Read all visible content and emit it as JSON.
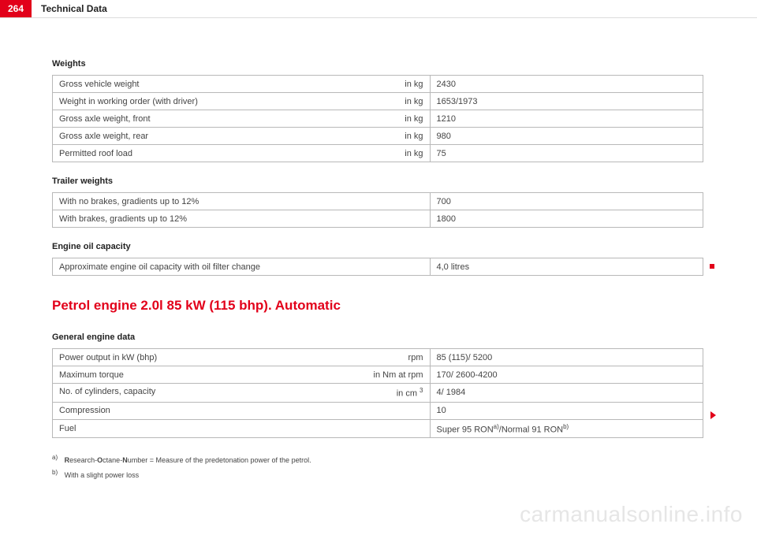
{
  "page": {
    "number": "264",
    "title": "Technical Data"
  },
  "weights": {
    "label": "Weights",
    "rows": [
      {
        "name": "Gross vehicle weight",
        "unit": "in kg",
        "value": "2430"
      },
      {
        "name": "Weight in working order (with driver)",
        "unit": "in kg",
        "value": "1653/1973"
      },
      {
        "name": "Gross axle weight, front",
        "unit": "in kg",
        "value": "1210"
      },
      {
        "name": "Gross axle weight, rear",
        "unit": "in kg",
        "value": "980"
      },
      {
        "name": "Permitted roof load",
        "unit": "in kg",
        "value": "75"
      }
    ]
  },
  "trailer": {
    "label": "Trailer weights",
    "rows": [
      {
        "name": "With no brakes, gradients up to 12%",
        "unit": "",
        "value": "700"
      },
      {
        "name": "With brakes, gradients up to 12%",
        "unit": "",
        "value": "1800"
      }
    ]
  },
  "oil": {
    "label": "Engine oil capacity",
    "rows": [
      {
        "name": "Approximate engine oil capacity with oil filter change",
        "unit": "",
        "value": "4,0 litres"
      }
    ]
  },
  "engine_heading": "Petrol engine 2.0l 85 kW (115 bhp). Automatic",
  "engine": {
    "label": "General engine data",
    "rows": [
      {
        "name": "Power output in kW (bhp)",
        "unit": "rpm",
        "value": "85 (115)/ 5200"
      },
      {
        "name": "Maximum torque",
        "unit": "in Nm at rpm",
        "value": "170/ 2600-4200"
      },
      {
        "name": "No. of cylinders, capacity",
        "unit_html": "in cm <sup>3</sup>",
        "value": "4/ 1984"
      },
      {
        "name": "Compression",
        "unit": "",
        "value": "10"
      },
      {
        "name": "Fuel",
        "unit": "",
        "value_html": "Super 95 RON<sup>a)</sup>/Normal 91 RON<sup>b)</sup>"
      }
    ]
  },
  "footnotes": {
    "a_key": "a)",
    "a_text_html": "<b>R</b>esearch-<b>O</b>ctane-<b>N</b>umber = Measure of the predetonation power of the petrol.",
    "b_key": "b)",
    "b_text": "With a slight power loss"
  },
  "watermark": "carmanualsonline.info"
}
